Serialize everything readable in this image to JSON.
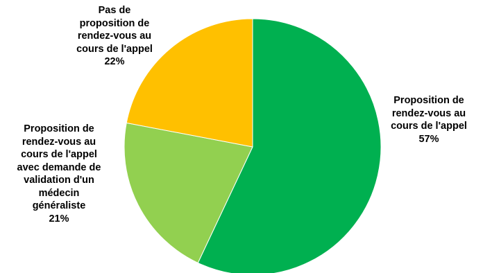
{
  "chart_data": {
    "type": "pie",
    "title": "",
    "categories": [
      "Proposition de rendez-vous au cours de l'appel",
      "Proposition de rendez-vous au cours de l'appel avec demande de validation d'un médecin généraliste",
      "Pas de proposition de rendez-vous au cours de l'appel"
    ],
    "values": [
      57,
      21,
      22
    ],
    "value_labels": [
      "57%",
      "21%",
      "22%"
    ],
    "colors": [
      "#00B050",
      "#92D050",
      "#FFC000"
    ],
    "label_lines": [
      [
        "Proposition de",
        "rendez-vous au",
        "cours de l'appel"
      ],
      [
        "Proposition de",
        "rendez-vous au",
        "cours de l'appel",
        "avec demande de",
        "validation d'un",
        "médecin",
        "généraliste"
      ],
      [
        "Pas de",
        "proposition de",
        "rendez-vous au",
        "cours de l'appel"
      ]
    ],
    "start_angle": "12 o'clock",
    "direction": "clockwise",
    "legend": "none"
  }
}
